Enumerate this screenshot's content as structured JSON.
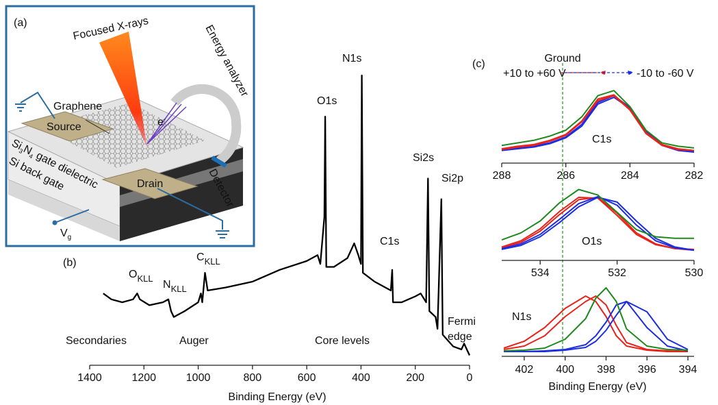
{
  "schematic": {
    "panel": "(a)",
    "xrays": "Focused X-rays",
    "graphene": "Graphene",
    "analyzer": "Energy analyzer",
    "electron": [
      "e",
      "-"
    ],
    "source": "Source",
    "drain": "Drain",
    "detector": "Detector",
    "dielectric": [
      "Si",
      "3",
      "N",
      "4",
      " gate dielectric"
    ],
    "back_gate": "Si back gate",
    "gate_voltage": [
      "V",
      "g"
    ]
  },
  "chart_data": [
    {
      "type": "line",
      "panel": "(b)",
      "color": "#000000",
      "x": [
        1350,
        1320,
        1280,
        1240,
        1225,
        1215,
        1180,
        1130,
        1110,
        1100,
        1090,
        1050,
        1000,
        990,
        985,
        975,
        965,
        900,
        800,
        700,
        600,
        560,
        550,
        535,
        532,
        528,
        500,
        450,
        425,
        410,
        400,
        397,
        393,
        350,
        290,
        285,
        282,
        250,
        200,
        180,
        160,
        153,
        148,
        125,
        118,
        104,
        99,
        60,
        30,
        20,
        10,
        0
      ],
      "values": [
        26,
        24,
        23,
        24,
        26,
        24,
        22,
        23,
        24,
        20,
        18,
        20,
        23,
        26,
        23,
        33,
        27,
        28,
        30,
        34,
        37,
        39,
        36,
        52,
        86,
        35,
        35,
        38,
        43,
        39,
        36,
        100,
        33,
        30,
        27,
        34,
        23,
        23,
        25,
        26,
        23,
        65,
        20,
        18,
        14,
        58,
        12,
        8,
        7,
        9,
        7,
        5
      ],
      "xlim": [
        1400,
        0
      ],
      "ylim": [
        0,
        100
      ],
      "xticks": [
        1400,
        1200,
        1000,
        800,
        600,
        400,
        200,
        0
      ],
      "xlabel": "Binding Energy (eV)",
      "peak_labels": [
        {
          "text": "O",
          "sub": "KLL"
        },
        {
          "text": "N",
          "sub": "KLL"
        },
        {
          "text": "C",
          "sub": "KLL"
        },
        {
          "text": "O1s"
        },
        {
          "text": "N1s"
        },
        {
          "text": "C1s"
        },
        {
          "text": "Si2s"
        },
        {
          "text": "Si2p"
        }
      ],
      "region_labels": {
        "color": "#e8231c",
        "items": [
          "Secondaries",
          "Auger",
          "Core levels",
          [
            "Fermi",
            "edge"
          ]
        ]
      }
    },
    {
      "type": "line",
      "panel": "(c)",
      "label": "C1s",
      "header": {
        "ground": {
          "text": "Ground",
          "color": "#1e9a1e"
        },
        "positive": {
          "text": "+10 to +60 V",
          "color": "#e8231c"
        },
        "negative": {
          "text": "-10 to -60 V",
          "color": "#1c2ee0"
        }
      },
      "x": [
        288,
        287.5,
        287,
        286.5,
        286,
        285.5,
        285,
        284.5,
        284,
        283.5,
        283,
        282.5,
        282
      ],
      "xlim": [
        288,
        282
      ],
      "ylim": [
        0,
        100
      ],
      "xticks": [
        288,
        286,
        284,
        282
      ],
      "series": [
        {
          "color": "#1c2ee0",
          "values": [
            16,
            18,
            20,
            24,
            31,
            46,
            72,
            80,
            66,
            38,
            22,
            16,
            14
          ]
        },
        {
          "color": "#1c2ee0",
          "values": [
            15,
            17,
            19,
            23,
            30,
            44,
            70,
            78,
            65,
            37,
            21,
            15,
            13
          ]
        },
        {
          "color": "#e8231c",
          "values": [
            16,
            19,
            21,
            26,
            33,
            49,
            74,
            80,
            63,
            35,
            21,
            16,
            15
          ]
        },
        {
          "color": "#e8231c",
          "values": [
            17,
            20,
            22,
            27,
            34,
            50,
            76,
            81,
            64,
            36,
            22,
            17,
            15
          ]
        },
        {
          "color": "#1e8a1e",
          "values": [
            21,
            24,
            27,
            32,
            39,
            55,
            80,
            86,
            67,
            39,
            24,
            20,
            18
          ]
        }
      ]
    },
    {
      "type": "line",
      "label": "O1s",
      "x": [
        535,
        534.5,
        534,
        533.5,
        533,
        532.5,
        532,
        531.5,
        531,
        530.5,
        530
      ],
      "xlim": [
        535,
        530
      ],
      "ylim": [
        0,
        100
      ],
      "xticks": [
        534,
        532,
        530
      ],
      "series": [
        {
          "color": "#e8231c",
          "values": [
            17,
            25,
            40,
            62,
            80,
            79,
            57,
            33,
            20,
            15,
            14
          ]
        },
        {
          "color": "#e8231c",
          "values": [
            16,
            23,
            37,
            58,
            77,
            80,
            60,
            35,
            21,
            15,
            13
          ]
        },
        {
          "color": "#1c2ee0",
          "values": [
            15,
            21,
            33,
            52,
            72,
            81,
            70,
            45,
            25,
            16,
            13
          ]
        },
        {
          "color": "#1c2ee0",
          "values": [
            14,
            19,
            30,
            48,
            68,
            80,
            74,
            50,
            28,
            17,
            13
          ]
        },
        {
          "color": "#1e8a1e",
          "values": [
            26,
            35,
            50,
            73,
            90,
            83,
            61,
            39,
            30,
            28,
            28
          ]
        }
      ]
    },
    {
      "type": "line",
      "label": "N1s",
      "xlabel": "Binding Energy (eV)",
      "x": [
        403,
        402,
        401,
        400,
        399,
        398.5,
        398,
        397.5,
        397,
        396,
        395,
        394
      ],
      "xlim": [
        403.1,
        393.7
      ],
      "ylim": [
        0,
        100
      ],
      "xticks": [
        402,
        400,
        398,
        396,
        394
      ],
      "series": [
        {
          "color": "#e8231c",
          "values": [
            10,
            15,
            30,
            58,
            80,
            88,
            75,
            45,
            20,
            10,
            8,
            7
          ]
        },
        {
          "color": "#e8231c",
          "values": [
            12,
            22,
            42,
            70,
            88,
            80,
            58,
            30,
            15,
            9,
            7,
            7
          ]
        },
        {
          "color": "#1c2ee0",
          "values": [
            7,
            7,
            8,
            10,
            17,
            30,
            50,
            75,
            80,
            42,
            15,
            8
          ]
        },
        {
          "color": "#1c2ee0",
          "values": [
            7,
            7,
            7,
            9,
            13,
            22,
            38,
            60,
            80,
            65,
            25,
            10
          ]
        },
        {
          "color": "#1e8a1e",
          "values": [
            8,
            9,
            12,
            25,
            55,
            85,
            100,
            80,
            40,
            15,
            10,
            9
          ]
        }
      ]
    }
  ]
}
